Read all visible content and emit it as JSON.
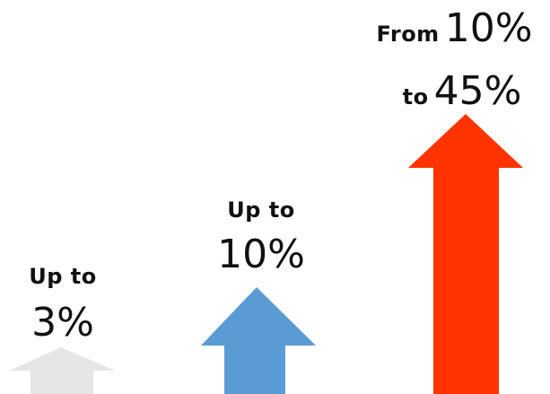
{
  "items": [
    {
      "line1": "Up to",
      "line2": "3%",
      "color": "#e6e6e6"
    },
    {
      "line1": "Up to",
      "line2": "10%",
      "color": "#5b9bd5"
    },
    {
      "row1_prefix": "From",
      "row1_value": "10%",
      "row2_prefix": "to",
      "row2_value": "45%",
      "color": "#ff3300"
    }
  ],
  "icons": [
    "arrow-up-icon"
  ]
}
